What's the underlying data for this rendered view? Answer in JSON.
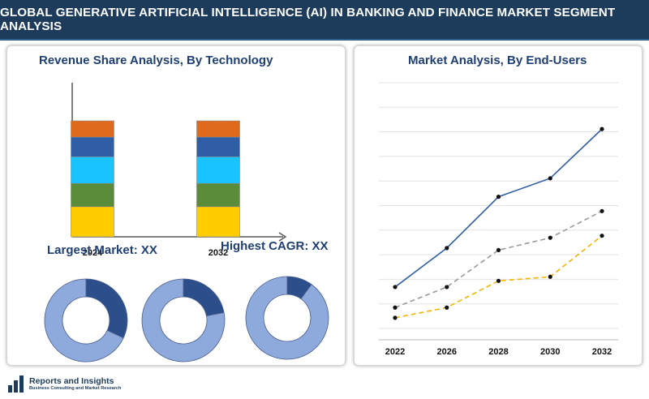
{
  "header": {
    "title": "GLOBAL GENERATIVE ARTIFICIAL INTELLIGENCE (AI) IN BANKING AND FINANCE MARKET SEGMENT ANALYSIS"
  },
  "logo": {
    "name": "Reports and Insights",
    "tagline": "Business Consulting and Market Research"
  },
  "colors": {
    "header_bg": "#1d3c5c",
    "title_text": "#1f3f73"
  },
  "chart_data": [
    {
      "type": "bar",
      "stacked": true,
      "title": "Revenue Share Analysis, By Technology",
      "categories": [
        "2024",
        "2032"
      ],
      "ylim": [
        0,
        100
      ],
      "series": [
        {
          "color": "#ffcc00",
          "values": [
            26,
            26
          ]
        },
        {
          "color": "#5b8c3a",
          "values": [
            20,
            20
          ]
        },
        {
          "color": "#19c3ff",
          "values": [
            23,
            23
          ]
        },
        {
          "color": "#2f5ea6",
          "values": [
            17,
            17
          ]
        },
        {
          "color": "#e06a1b",
          "values": [
            14,
            14
          ]
        }
      ]
    },
    {
      "type": "pie",
      "donut": true,
      "title": "Largest Market: XX",
      "slices": [
        {
          "value": 32,
          "color": "#2c4f8c"
        },
        {
          "value": 68,
          "color": "#8ea9dc"
        }
      ]
    },
    {
      "type": "pie",
      "donut": true,
      "slices": [
        {
          "value": 22,
          "color": "#2c4f8c"
        },
        {
          "value": 78,
          "color": "#8ea9dc"
        }
      ]
    },
    {
      "type": "pie",
      "donut": true,
      "title": "Highest CAGR: XX",
      "slices": [
        {
          "value": 10,
          "color": "#2c4f8c"
        },
        {
          "value": 90,
          "color": "#8ea9dc"
        }
      ]
    },
    {
      "type": "line",
      "title": "Market Analysis, By End-Users",
      "x": [
        "2022",
        "2026",
        "2028",
        "2030",
        "2032"
      ],
      "ylim": [
        0,
        100
      ],
      "grid": true,
      "series": [
        {
          "color": "#2f5ea6",
          "style": "solid",
          "values": [
            19,
            38,
            63,
            72,
            96
          ]
        },
        {
          "color": "#9a9a9a",
          "style": "dashed",
          "values": [
            9,
            19,
            37,
            43,
            56
          ]
        },
        {
          "color": "#f5b400",
          "style": "dashed",
          "values": [
            4,
            9,
            22,
            24,
            44
          ]
        }
      ]
    }
  ]
}
